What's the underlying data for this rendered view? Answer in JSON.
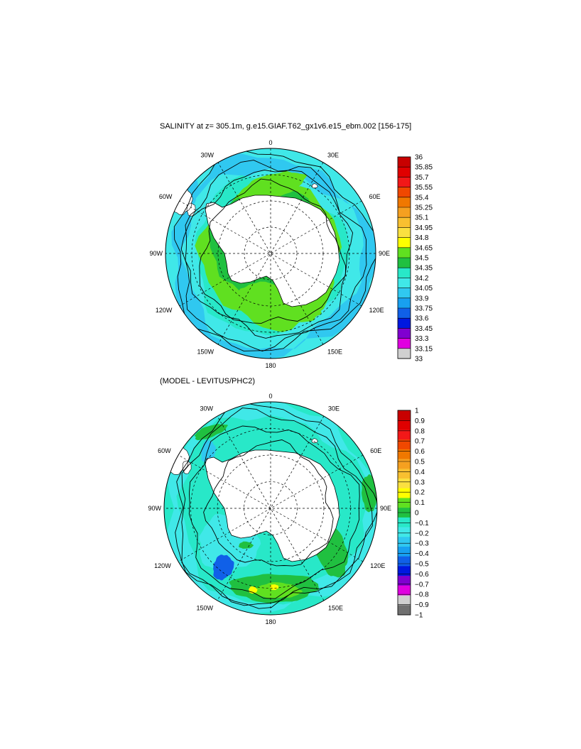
{
  "panels": [
    {
      "title": "SALINITY at z= 305.1m, g.e15.GIAF.T62_gx1v6.e15_ebm.002 [156-175]",
      "lon_labels": [
        "0",
        "30E",
        "60E",
        "90E",
        "120E",
        "150E",
        "180",
        "150W",
        "120W",
        "90W",
        "60W",
        "30W"
      ],
      "colorbar": {
        "labels": [
          "36",
          "35.85",
          "35.7",
          "35.55",
          "35.4",
          "35.25",
          "35.1",
          "34.95",
          "34.8",
          "34.65",
          "34.5",
          "34.35",
          "34.2",
          "34.05",
          "33.9",
          "33.75",
          "33.6",
          "33.45",
          "33.3",
          "33.15",
          "33"
        ],
        "colors": [
          "#c80000",
          "#e00000",
          "#f21818",
          "#f04800",
          "#f07800",
          "#f5a020",
          "#f8c030",
          "#fae040",
          "#ffff00",
          "#60e020",
          "#20c040",
          "#28e8c8",
          "#40e8e8",
          "#30c8f0",
          "#18a0f0",
          "#1060e8",
          "#0018e0",
          "#8000d0",
          "#e000e0",
          "#d0d0d0"
        ]
      }
    },
    {
      "title": "(MODEL - LEVITUS/PHC2)",
      "lon_labels": [
        "0",
        "30E",
        "60E",
        "90E",
        "120E",
        "150E",
        "180",
        "150W",
        "120W",
        "90W",
        "60W",
        "30W"
      ],
      "colorbar": {
        "labels": [
          "1",
          "0.9",
          "0.8",
          "0.7",
          "0.6",
          "0.5",
          "0.4",
          "0.3",
          "0.2",
          "0.1",
          "0",
          "−0.1",
          "−0.2",
          "−0.3",
          "−0.4",
          "−0.5",
          "−0.6",
          "−0.7",
          "−0.8",
          "−0.9",
          "−1"
        ],
        "colors": [
          "#c80000",
          "#e00000",
          "#f21818",
          "#f04800",
          "#f07800",
          "#f5a020",
          "#f8c030",
          "#fae040",
          "#ffff00",
          "#60e020",
          "#20c040",
          "#28e8c8",
          "#40e8e8",
          "#30c8f0",
          "#18a0f0",
          "#1060e8",
          "#0018e0",
          "#8000d0",
          "#e000e0",
          "#d0d0d0",
          "#707070"
        ]
      }
    }
  ]
}
